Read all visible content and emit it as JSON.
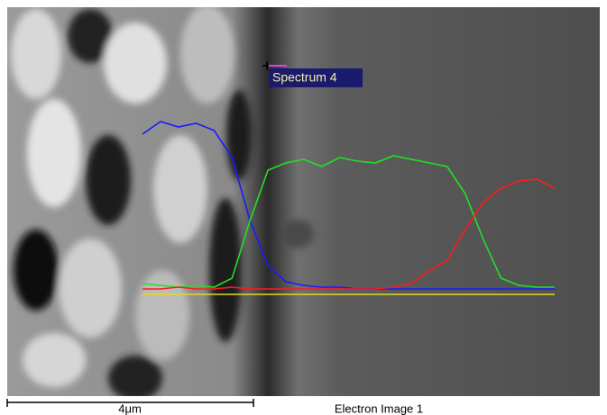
{
  "image_label": "Spectrum 4",
  "scale_bar": "4μm",
  "caption": "Electron Image 1",
  "line_scan": {
    "series": [
      {
        "color": "#1a1aff",
        "values": [
          88,
          95,
          92,
          94,
          90,
          75,
          40,
          15,
          6,
          4,
          3,
          3,
          2,
          2,
          2,
          2,
          2,
          2,
          2,
          2,
          2,
          2,
          2,
          2
        ]
      },
      {
        "color": "#22e022",
        "values": [
          5,
          4,
          3,
          4,
          3,
          8,
          40,
          68,
          72,
          74,
          70,
          75,
          73,
          72,
          76,
          74,
          72,
          70,
          55,
          30,
          8,
          4,
          3,
          3
        ]
      },
      {
        "color": "#ff1a1a",
        "values": [
          2,
          2,
          3,
          2,
          2,
          3,
          2,
          2,
          2,
          2,
          2,
          2,
          2,
          2,
          3,
          5,
          12,
          18,
          35,
          50,
          58,
          62,
          63,
          58
        ]
      }
    ]
  }
}
